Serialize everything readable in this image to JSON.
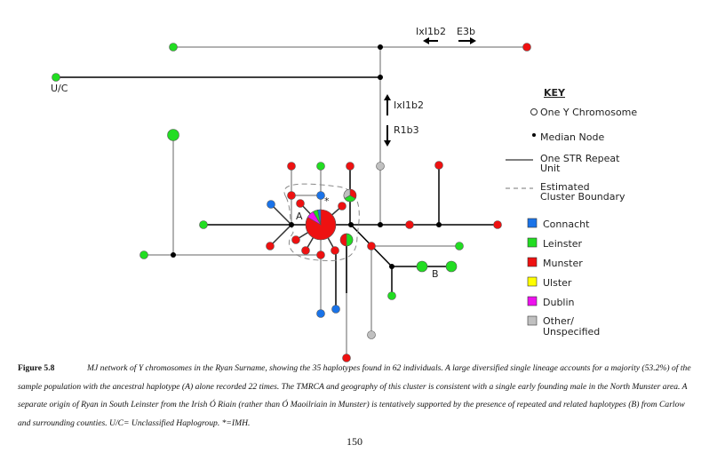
{
  "diagram": {
    "labels": {
      "uc": "U/C",
      "a": "A",
      "b": "B",
      "star": "*",
      "top_left_arrow": "IxI1b2",
      "top_right_arrow": "E3b",
      "vert_up_arrow": "IxI1b2",
      "vert_down_arrow": "R1b3"
    },
    "colors": {
      "connacht": "#1a73e8",
      "leinster": "#22dd22",
      "munster": "#ee1111",
      "ulster": "#ffff00",
      "dublin": "#ee11ee",
      "other": "#c0c0c0"
    }
  },
  "key": {
    "title": "KEY",
    "one_y": "One Y Chromosome",
    "median": "Median Node",
    "str_line1": "One STR Repeat",
    "str_line2": "Unit",
    "cluster_line1": "Estimated",
    "cluster_line2": "Cluster Boundary",
    "regions": [
      {
        "label": "Connacht",
        "color": "#1a73e8"
      },
      {
        "label": "Leinster",
        "color": "#22dd22"
      },
      {
        "label": "Munster",
        "color": "#ee1111"
      },
      {
        "label": "Ulster",
        "color": "#ffff00"
      },
      {
        "label": "Dublin",
        "color": "#ee11ee"
      },
      {
        "label": "Other/",
        "label2": "Unspecified",
        "color": "#c0c0c0"
      }
    ]
  },
  "caption": {
    "figure": "Figure 5.8",
    "text": "MJ network of Y chromosomes in the Ryan Surname, showing the 35 haplotypes found in 62 individuals. A large diversified single lineage accounts for a majority (53.2%) of the sample population with the ancestral haplotype (A) alone recorded 22 times. The TMRCA and geography of this cluster is consistent with a single early founding male in the North Munster area. A separate origin of Ryan in South Leinster from the Irish Ó Riain (rather than Ó Maoilriain in Munster) is tentatively supported by the presence of repeated and related haplotypes (B) from Carlow and surrounding counties. U/C= Unclassified Haplogroup. *=IMH."
  },
  "page_number": "150"
}
